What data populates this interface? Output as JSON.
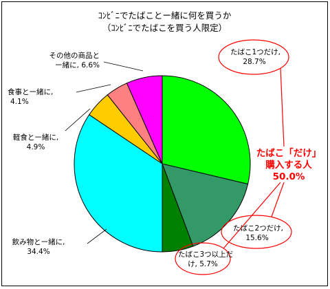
{
  "chart_data": {
    "type": "pie",
    "title": "ｺﾝﾋﾞﾆでたばことー緒に何を買うか",
    "subtitle": "（ｺﾝﾋﾞﾆでたばこを買う人限定）",
    "slices": [
      {
        "label_line1": "たばこ1つだけ,",
        "label_line2": "28.7%",
        "value": 28.7,
        "color": "#00ff00"
      },
      {
        "label_line1": "たばこ2つだけ,",
        "label_line2": "15.6%",
        "value": 15.6,
        "color": "#339966"
      },
      {
        "label_line1": "たばこ3つ以上だ",
        "label_line2": "け, 5.7%",
        "value": 5.7,
        "color": "#008000"
      },
      {
        "label_line1": "飲み物とー緒に,",
        "label_line2": "34.4%",
        "value": 34.4,
        "color": "#00ffff"
      },
      {
        "label_line1": "軽食とー緒に,",
        "label_line2": "4.9%",
        "value": 4.9,
        "color": "#ffcc00"
      },
      {
        "label_line1": "食事とー緒に,",
        "label_line2": "4.1%",
        "value": 4.1,
        "color": "#ff8080"
      },
      {
        "label_line1": "その他の商品と",
        "label_line2": "ー緒に, 6.6%",
        "value": 6.6,
        "color": "#ff00ff"
      }
    ],
    "annotation": {
      "line1": "たばこ「だけ」",
      "line2": "購入する人",
      "line3": "50.0%",
      "color": "#ff0000"
    }
  }
}
